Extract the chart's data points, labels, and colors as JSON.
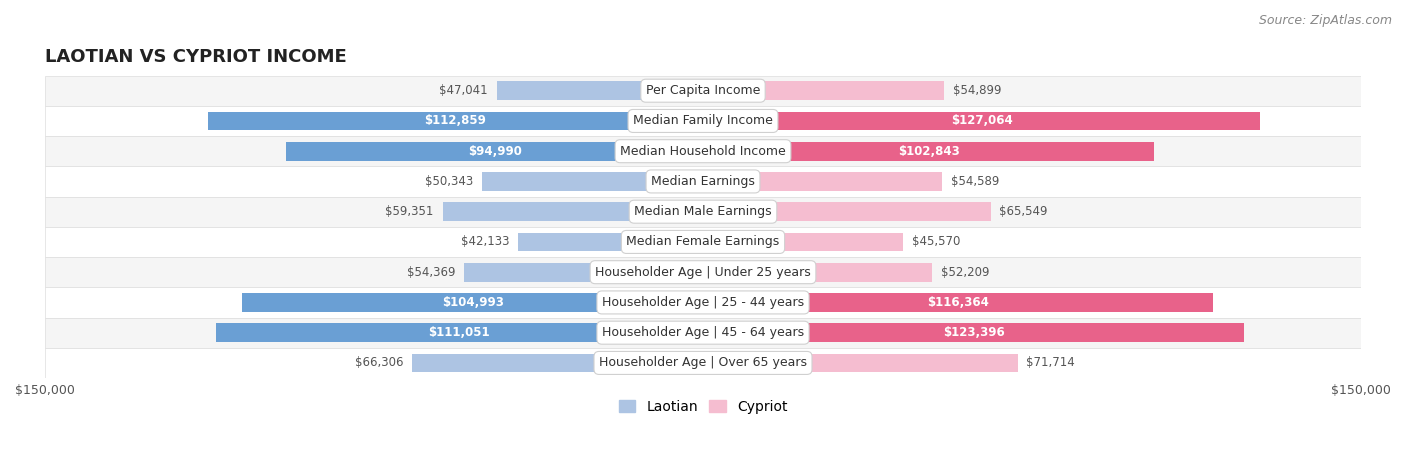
{
  "title": "LAOTIAN VS CYPRIOT INCOME",
  "source": "Source: ZipAtlas.com",
  "categories": [
    "Per Capita Income",
    "Median Family Income",
    "Median Household Income",
    "Median Earnings",
    "Median Male Earnings",
    "Median Female Earnings",
    "Householder Age | Under 25 years",
    "Householder Age | 25 - 44 years",
    "Householder Age | 45 - 64 years",
    "Householder Age | Over 65 years"
  ],
  "laotian": [
    47041,
    112859,
    94990,
    50343,
    59351,
    42133,
    54369,
    104993,
    111051,
    66306
  ],
  "cypriot": [
    54899,
    127064,
    102843,
    54589,
    65549,
    45570,
    52209,
    116364,
    123396,
    71714
  ],
  "laotian_labels": [
    "$47,041",
    "$112,859",
    "$94,990",
    "$50,343",
    "$59,351",
    "$42,133",
    "$54,369",
    "$104,993",
    "$111,051",
    "$66,306"
  ],
  "cypriot_labels": [
    "$54,899",
    "$127,064",
    "$102,843",
    "$54,589",
    "$65,549",
    "$45,570",
    "$52,209",
    "$116,364",
    "$123,396",
    "$71,714"
  ],
  "max_val": 150000,
  "bar_height": 0.62,
  "laotian_color_light": "#adc4e3",
  "laotian_color_dark": "#6a9fd4",
  "cypriot_color_light": "#f5bdd0",
  "cypriot_color_dark": "#e8628a",
  "bg_color": "#ffffff",
  "row_bg_odd": "#f5f5f5",
  "row_bg_even": "#ffffff",
  "row_border": "#dddddd",
  "label_color_inside": "#ffffff",
  "label_color_outside": "#555555",
  "title_fontsize": 13,
  "source_fontsize": 9,
  "legend_fontsize": 10,
  "tick_fontsize": 9,
  "category_fontsize": 9,
  "value_fontsize": 8.5,
  "inside_threshold": 75000
}
